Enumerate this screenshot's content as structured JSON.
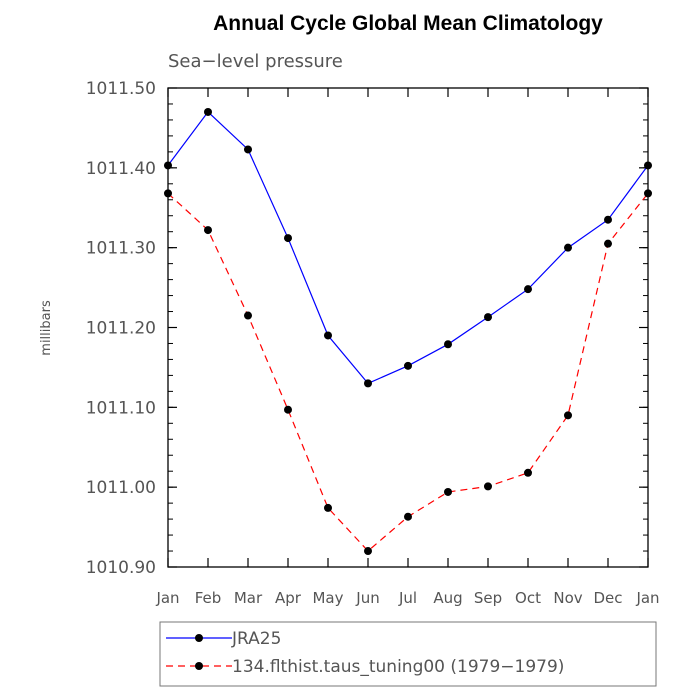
{
  "chart_data": {
    "type": "line",
    "title": "Annual Cycle Global Mean Climatology",
    "subtitle": "Sea−level pressure",
    "ylabel": "millibars",
    "xlabel": "",
    "categories": [
      "Jan",
      "Feb",
      "Mar",
      "Apr",
      "May",
      "Jun",
      "Jul",
      "Aug",
      "Sep",
      "Oct",
      "Nov",
      "Dec",
      "Jan"
    ],
    "ylim": [
      1010.9,
      1011.5
    ],
    "yticks": [
      "1010.90",
      "1011.00",
      "1011.10",
      "1011.20",
      "1011.30",
      "1011.40",
      "1011.50"
    ],
    "ytick_values": [
      1010.9,
      1011.0,
      1011.1,
      1011.2,
      1011.3,
      1011.4,
      1011.5
    ],
    "series": [
      {
        "name": "JRA25",
        "color": "#0000ff",
        "dash": "solid",
        "values": [
          1011.403,
          1011.47,
          1011.423,
          1011.312,
          1011.19,
          1011.13,
          1011.152,
          1011.179,
          1011.213,
          1011.248,
          1011.3,
          1011.335,
          1011.403
        ]
      },
      {
        "name": "134.flthist.taus_tuning00 (1979−1979)",
        "color": "#ff0000",
        "dash": "dashed",
        "values": [
          1011.368,
          1011.322,
          1011.215,
          1011.097,
          1010.974,
          1010.92,
          1010.963,
          1010.994,
          1011.001,
          1011.018,
          1011.09,
          1011.305,
          1011.368
        ]
      }
    ],
    "legend_position": "bottom",
    "grid": false
  }
}
